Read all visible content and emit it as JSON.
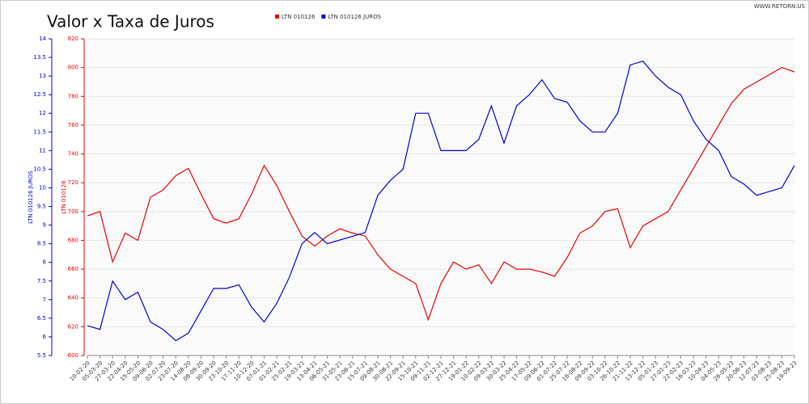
{
  "chart_data": {
    "type": "line",
    "title": "Valor x Taxa de Juros",
    "source": "WWW.RETORN.US",
    "ylabel": "LTN 010126",
    "y2label": "LTN 010126 JUROS",
    "categories": [
      "10-02-20",
      "05-03-20",
      "27-03-20",
      "22-04-20",
      "15-05-20",
      "09-06-20",
      "02-07-20",
      "23-07-20",
      "14-08-20",
      "08-09-20",
      "30-09-20",
      "23-10-20",
      "17-11-20",
      "10-12-20",
      "07-01-21",
      "01-02-21",
      "25-02-21",
      "19-03-21",
      "13-04-21",
      "06-05-21",
      "31-05-21",
      "23-06-21",
      "15-07-21",
      "09-08-21",
      "30-08-21",
      "22-09-21",
      "15-10-21",
      "09-11-21",
      "02-12-21",
      "27-12-21",
      "19-01-22",
      "10-02-22",
      "09-03-22",
      "30-03-22",
      "25-04-22",
      "17-05-22",
      "09-06-22",
      "01-07-22",
      "25-07-22",
      "16-08-22",
      "09-09-22",
      "03-10-22",
      "26-10-22",
      "21-11-22",
      "13-12-22",
      "05-01-23",
      "27-01-23",
      "22-02-23",
      "16-03-23",
      "10-04-23",
      "04-05-23",
      "26-05-23",
      "20-06-23",
      "12-07-23",
      "03-08-23",
      "25-08-23",
      "19-09-23"
    ],
    "series": [
      {
        "name": "LTN 010126",
        "color": "#ee0000",
        "values": [
          697,
          700,
          665,
          685,
          680,
          710,
          715,
          725,
          730,
          712,
          695,
          692,
          695,
          712,
          732,
          718,
          700,
          683,
          676,
          683,
          688,
          685,
          683,
          670,
          660,
          655,
          650,
          625,
          650,
          665,
          660,
          663,
          650,
          665,
          660,
          660,
          658,
          655,
          668,
          685,
          690,
          700,
          702,
          675,
          690,
          695,
          700,
          715,
          730,
          745,
          760,
          775,
          785,
          790,
          795,
          800,
          797
        ]
      },
      {
        "name": "LTN 010126 JUROS",
        "color": "#0000dd",
        "axis": "y2",
        "values": [
          6.3,
          6.2,
          7.5,
          7.0,
          7.2,
          6.4,
          6.2,
          5.9,
          6.1,
          6.7,
          7.3,
          7.3,
          7.4,
          6.8,
          6.4,
          6.9,
          7.6,
          8.5,
          8.8,
          8.5,
          8.6,
          8.7,
          8.8,
          9.8,
          10.2,
          10.5,
          12,
          12,
          11,
          11,
          11,
          11.3,
          12.2,
          11.2,
          12.2,
          12.5,
          12.9,
          12.4,
          12.3,
          11.8,
          11.5,
          11.5,
          12,
          13.3,
          13.4,
          13,
          12.7,
          12.5,
          11.8,
          11.3,
          11,
          10.3,
          10.1,
          9.8,
          9.9,
          10,
          10.6
        ]
      }
    ],
    "ylim": [
      600,
      820
    ],
    "yticks": [
      600,
      620,
      640,
      660,
      680,
      700,
      720,
      740,
      760,
      780,
      800,
      820
    ],
    "y2lim": [
      5.5,
      14
    ],
    "y2ticks": [
      5.5,
      6,
      6.5,
      7,
      7.5,
      8,
      8.5,
      9,
      9.5,
      10,
      10.5,
      11,
      11.5,
      12,
      12.5,
      13,
      13.5,
      14
    ],
    "grid": true
  }
}
